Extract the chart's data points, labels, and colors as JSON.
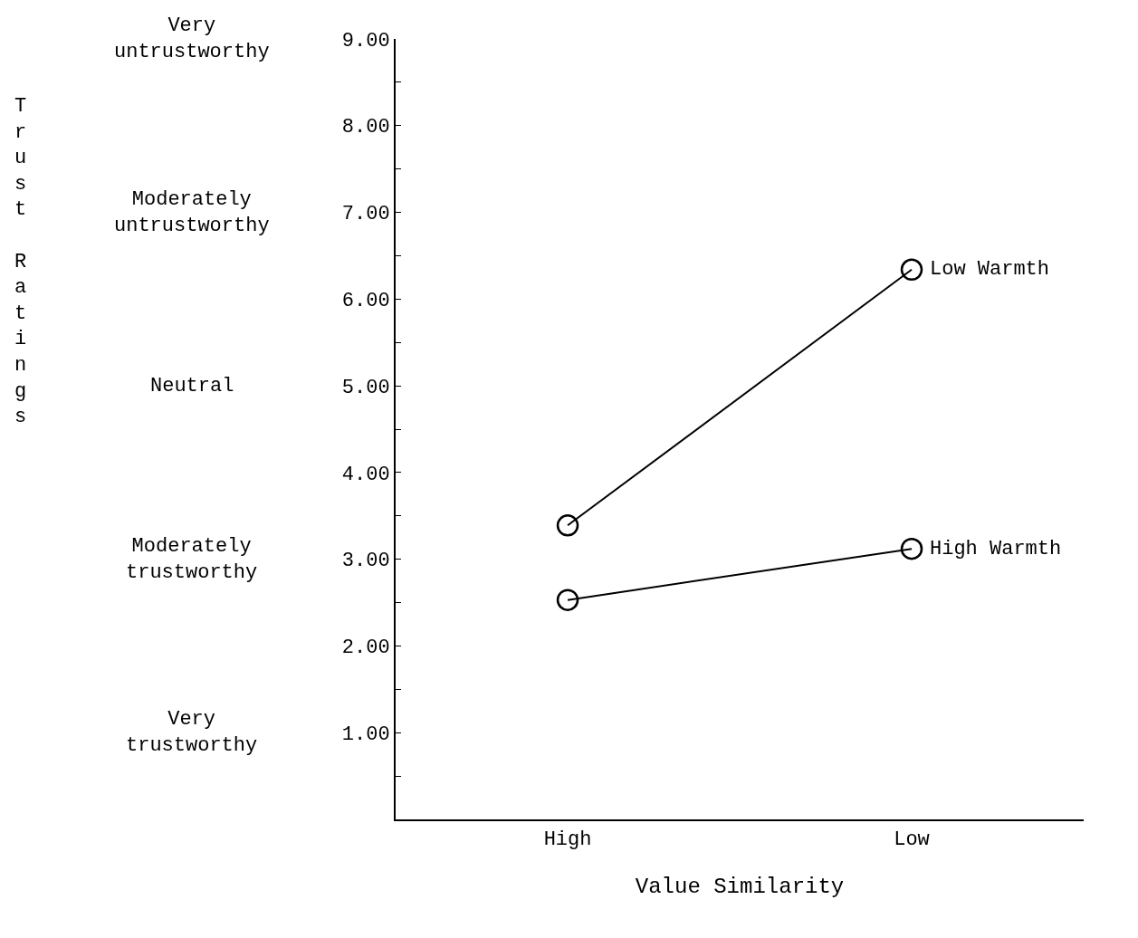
{
  "chart_data": {
    "type": "line",
    "xlabel": "Value Similarity",
    "ylabel": "Trust Ratings",
    "categories": [
      "High",
      "Low"
    ],
    "series": [
      {
        "name": "Low Warmth",
        "color": "#000000",
        "values": [
          3.39,
          6.34
        ]
      },
      {
        "name": "High Warmth",
        "color": "#000000",
        "values": [
          2.53,
          3.12
        ]
      }
    ],
    "ylim": [
      0,
      9
    ],
    "yticks": [
      {
        "value": 0.5,
        "label": null
      },
      {
        "value": 1,
        "label": "1.00"
      },
      {
        "value": 1.5,
        "label": null
      },
      {
        "value": 2,
        "label": "2.00"
      },
      {
        "value": 2.5,
        "label": null
      },
      {
        "value": 3,
        "label": "3.00"
      },
      {
        "value": 3.5,
        "label": null
      },
      {
        "value": 4,
        "label": "4.00"
      },
      {
        "value": 4.5,
        "label": null
      },
      {
        "value": 5,
        "label": "5.00"
      },
      {
        "value": 5.5,
        "label": null
      },
      {
        "value": 6,
        "label": "6.00"
      },
      {
        "value": 6.5,
        "label": null
      },
      {
        "value": 7,
        "label": "7.00"
      },
      {
        "value": 7.5,
        "label": null
      },
      {
        "value": 8,
        "label": "8.00"
      },
      {
        "value": 8.5,
        "label": null
      },
      {
        "value": 9,
        "label": "9.00"
      }
    ],
    "annotations": [
      "Very untrustworthy",
      "Moderately untrustworthy",
      "Neutral",
      "Moderately trustworthy",
      "Very trustworthy"
    ],
    "marker": "circle",
    "line_style": "solid",
    "grid": false,
    "legend": false
  }
}
